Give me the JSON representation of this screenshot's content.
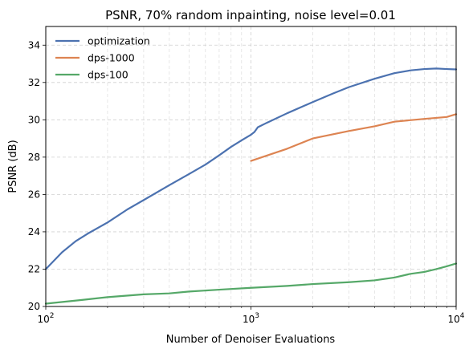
{
  "chart_data": {
    "type": "line",
    "title": "PSNR, 70% random inpainting, noise level=0.01",
    "xlabel": "Number of Denoiser Evaluations",
    "ylabel": "PSNR (dB)",
    "xscale": "log",
    "xlim": [
      100,
      10000
    ],
    "ylim": [
      20,
      35
    ],
    "grid": true,
    "legend_position": "top-left",
    "x_ticks": [
      100,
      1000,
      10000
    ],
    "x_tick_labels": [
      {
        "base": "10",
        "exp": "2"
      },
      {
        "base": "10",
        "exp": "3"
      },
      {
        "base": "10",
        "exp": "4"
      }
    ],
    "y_ticks": [
      20,
      22,
      24,
      26,
      28,
      30,
      32,
      34
    ],
    "y_tick_labels": [
      "20",
      "22",
      "24",
      "26",
      "28",
      "30",
      "32",
      "34"
    ],
    "series": [
      {
        "name": "optimization",
        "color": "#4c72b0",
        "points": [
          [
            100,
            22.0
          ],
          [
            120,
            22.9
          ],
          [
            140,
            23.5
          ],
          [
            160,
            23.9
          ],
          [
            200,
            24.5
          ],
          [
            250,
            25.2
          ],
          [
            300,
            25.7
          ],
          [
            400,
            26.5
          ],
          [
            500,
            27.1
          ],
          [
            600,
            27.6
          ],
          [
            700,
            28.1
          ],
          [
            800,
            28.55
          ],
          [
            900,
            28.9
          ],
          [
            1000,
            29.2
          ],
          [
            1040,
            29.35
          ],
          [
            1080,
            29.6
          ],
          [
            1200,
            29.85
          ],
          [
            1500,
            30.35
          ],
          [
            2000,
            30.95
          ],
          [
            2500,
            31.4
          ],
          [
            3000,
            31.75
          ],
          [
            4000,
            32.2
          ],
          [
            5000,
            32.5
          ],
          [
            6000,
            32.65
          ],
          [
            7000,
            32.72
          ],
          [
            8000,
            32.75
          ],
          [
            9000,
            32.72
          ],
          [
            10000,
            32.7
          ]
        ]
      },
      {
        "name": "dps-1000",
        "color": "#dd8452",
        "points": [
          [
            1000,
            27.8
          ],
          [
            1500,
            28.45
          ],
          [
            2000,
            29.0
          ],
          [
            3000,
            29.4
          ],
          [
            4000,
            29.65
          ],
          [
            5000,
            29.9
          ],
          [
            7000,
            30.05
          ],
          [
            9000,
            30.15
          ],
          [
            10000,
            30.3
          ]
        ]
      },
      {
        "name": "dps-100",
        "color": "#55a868",
        "points": [
          [
            100,
            20.15
          ],
          [
            150,
            20.35
          ],
          [
            200,
            20.5
          ],
          [
            300,
            20.65
          ],
          [
            400,
            20.7
          ],
          [
            500,
            20.8
          ],
          [
            700,
            20.9
          ],
          [
            1000,
            21.0
          ],
          [
            1500,
            21.1
          ],
          [
            2000,
            21.2
          ],
          [
            3000,
            21.3
          ],
          [
            4000,
            21.4
          ],
          [
            5000,
            21.55
          ],
          [
            6000,
            21.75
          ],
          [
            7000,
            21.85
          ],
          [
            8000,
            22.0
          ],
          [
            9000,
            22.15
          ],
          [
            10000,
            22.3
          ]
        ]
      }
    ]
  }
}
